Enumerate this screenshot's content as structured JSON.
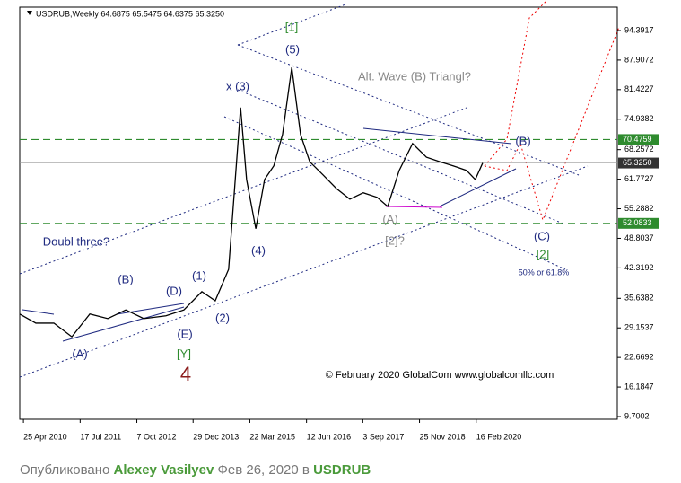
{
  "chart_data": {
    "type": "line",
    "title": "USDRUB,Weekly  64.6875 65.5475 64.6375 65.3250",
    "x": [
      2010.23,
      2010.58,
      2010.97,
      2011.36,
      2011.75,
      2012.14,
      2012.53,
      2012.92,
      2013.4,
      2013.79,
      2014.18,
      2014.47,
      2014.76,
      2015.02,
      2015.15,
      2015.35,
      2015.54,
      2015.74,
      2015.93,
      2016.13,
      2016.32,
      2016.52,
      2016.81,
      2017.1,
      2017.39,
      2017.68,
      2017.98,
      2018.21,
      2018.46,
      2018.75,
      2019.05,
      2019.34,
      2019.63,
      2019.92,
      2020.11,
      2020.27
    ],
    "series": [
      {
        "name": "USDRUB",
        "color": "#000000",
        "values": [
          32.2,
          30.2,
          30.2,
          27.2,
          32.2,
          31.2,
          33.1,
          31.2,
          31.8,
          33.1,
          37.1,
          35.1,
          42.0,
          77.5,
          61.7,
          50.9,
          61.7,
          64.7,
          71.6,
          86.3,
          71.6,
          65.6,
          62.7,
          59.7,
          57.4,
          58.8,
          57.8,
          55.8,
          63.7,
          69.6,
          66.6,
          65.6,
          64.7,
          63.7,
          61.7,
          65.325
        ]
      }
    ],
    "xlim": [
      2010.23,
      2023.19
    ],
    "xticks": [
      {
        "value": 2010.31,
        "label": "25 Apr 2010"
      },
      {
        "value": 2011.54,
        "label": "17 Jul 2011"
      },
      {
        "value": 2012.77,
        "label": "7 Oct 2012"
      },
      {
        "value": 2013.99,
        "label": "29 Dec 2013"
      },
      {
        "value": 2015.22,
        "label": "22 Mar 2015"
      },
      {
        "value": 2016.45,
        "label": "12 Jun 2016"
      },
      {
        "value": 2017.67,
        "label": "3 Sep 2017"
      },
      {
        "value": 2018.9,
        "label": "25 Nov 2018"
      },
      {
        "value": 2020.13,
        "label": "16 Feb 2020"
      }
    ],
    "ylim": [
      9.11,
      99.51
    ],
    "yticks": [
      94.3917,
      87.9072,
      81.4227,
      74.9382,
      68.2572,
      61.7727,
      55.2882,
      48.8037,
      42.3192,
      35.6382,
      29.1537,
      22.6692,
      16.1847,
      9.7002
    ],
    "hlines": [
      {
        "value": 70.4759,
        "label": "70.4759",
        "color": "#2e8b2e"
      },
      {
        "value": 65.325,
        "label": "65.3250",
        "color": "#999999"
      },
      {
        "value": 52.0833,
        "label": "52.0833",
        "color": "#2e8b2e"
      }
    ],
    "annotations": [
      {
        "text": "[1]",
        "color": "#2e8b2e"
      },
      {
        "text": "(5)",
        "color": "#1f2a80"
      },
      {
        "text": "x (3)",
        "color": "#1f2a80"
      },
      {
        "text": "Alt. Wave (B) Triangl?",
        "color": "#888888"
      },
      {
        "text": "(B)",
        "color": "#1f2a80"
      },
      {
        "text": "Doubl three?",
        "color": "#1f2a80"
      },
      {
        "text": "(A)",
        "color": "#888888"
      },
      {
        "text": "[2]?",
        "color": "#888888"
      },
      {
        "text": "(4)",
        "color": "#1f2a80"
      },
      {
        "text": "(C)",
        "color": "#1f2a80"
      },
      {
        "text": "[2]",
        "color": "#2e8b2e"
      },
      {
        "text": "50% or 61.8%",
        "color": "#1f2a80"
      },
      {
        "text": "(1)",
        "color": "#1f2a80"
      },
      {
        "text": "(B)",
        "color": "#1f2a80"
      },
      {
        "text": "(D)",
        "color": "#1f2a80"
      },
      {
        "text": "(2)",
        "color": "#1f2a80"
      },
      {
        "text": "(E)",
        "color": "#1f2a80"
      },
      {
        "text": "[Y]",
        "color": "#2e8b2e"
      },
      {
        "text": "4",
        "color": "#8b1a1a"
      },
      {
        "text": "(A)",
        "color": "#1f2a80"
      },
      {
        "text": "© February 2020 GlobalCom www.globalcomllc.com",
        "color": "#000000"
      }
    ]
  },
  "footer": {
    "prefix": "Опубликовано",
    "author": "Alexey Vasilyev",
    "date": "Фев 26, 2020 в",
    "symbol": "USDRUB"
  }
}
